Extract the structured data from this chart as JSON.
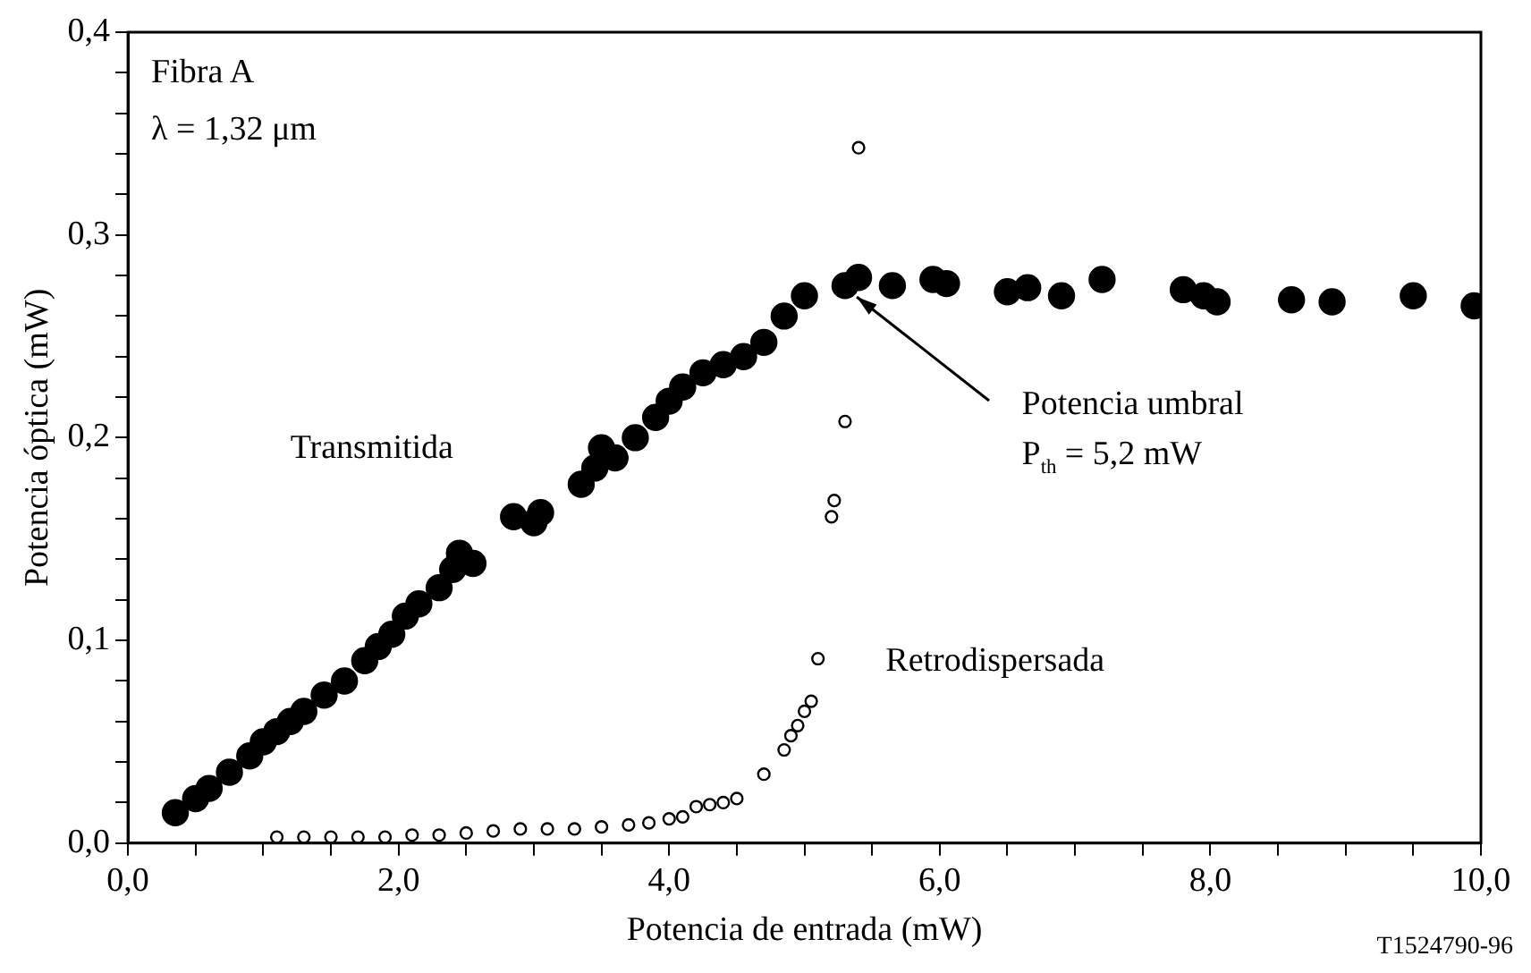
{
  "chart_data": {
    "type": "scatter",
    "xlabel": "Potencia de entrada (mW)",
    "ylabel": "Potencia óptica (mW)",
    "annotations": [
      "Fibra A",
      "λ = 1,32 μm",
      {
        "text": "Potencia umbral\nP$_{th}$ = 5,2 mW",
        "x": 5.35,
        "y": 0.275
      },
      "T1524790-96"
    ],
    "series": [
      {
        "name": "Transmitida",
        "color": "#000000",
        "x": [
          0.35,
          0.5,
          0.6,
          0.75,
          0.9,
          1.0,
          1.1,
          1.2,
          1.3,
          1.45,
          1.6,
          1.75,
          1.85,
          1.95,
          2.05,
          2.15,
          2.3,
          2.4,
          2.45,
          2.55,
          2.85,
          3.0,
          3.05,
          3.35,
          3.45,
          3.5,
          3.6,
          3.75,
          3.9,
          4.0,
          4.1,
          4.25,
          4.4,
          4.55,
          4.7,
          4.85,
          5.0,
          5.3,
          5.4,
          5.65,
          5.95,
          6.05,
          6.5,
          6.65,
          6.9,
          7.2,
          7.8,
          7.95,
          8.05,
          8.6,
          8.9,
          9.5,
          9.95
        ],
        "values": [
          0.015,
          0.022,
          0.027,
          0.035,
          0.043,
          0.05,
          0.055,
          0.06,
          0.065,
          0.073,
          0.08,
          0.09,
          0.097,
          0.103,
          0.112,
          0.118,
          0.126,
          0.135,
          0.143,
          0.138,
          0.161,
          0.158,
          0.163,
          0.177,
          0.185,
          0.195,
          0.19,
          0.2,
          0.21,
          0.218,
          0.225,
          0.232,
          0.236,
          0.24,
          0.247,
          0.26,
          0.27,
          0.275,
          0.279,
          0.275,
          0.278,
          0.276,
          0.272,
          0.274,
          0.27,
          0.278,
          0.273,
          0.27,
          0.267,
          0.268,
          0.267,
          0.27,
          0.265
        ]
      },
      {
        "name": "Retrodispersada",
        "color": "#000000",
        "x": [
          1.1,
          1.3,
          1.5,
          1.7,
          1.9,
          2.1,
          2.3,
          2.5,
          2.7,
          2.9,
          3.1,
          3.3,
          3.5,
          3.7,
          3.85,
          4.0,
          4.1,
          4.2,
          4.3,
          4.4,
          4.5,
          4.7,
          4.85,
          4.9,
          4.95,
          5.0,
          5.05,
          5.1,
          5.2,
          5.22,
          5.3,
          5.4
        ],
        "values": [
          0.003,
          0.003,
          0.003,
          0.003,
          0.003,
          0.004,
          0.004,
          0.005,
          0.006,
          0.007,
          0.007,
          0.007,
          0.008,
          0.009,
          0.01,
          0.012,
          0.013,
          0.018,
          0.019,
          0.02,
          0.022,
          0.034,
          0.046,
          0.053,
          0.058,
          0.065,
          0.07,
          0.091,
          0.161,
          0.169,
          0.208,
          0.343
        ]
      }
    ],
    "xlim": [
      0,
      10
    ],
    "xticks": [
      {
        "value": 0,
        "label": "0,0"
      },
      {
        "value": 0.5,
        "label": null
      },
      {
        "value": 1,
        "label": null
      },
      {
        "value": 1.5,
        "label": null
      },
      {
        "value": 2,
        "label": "2,0"
      },
      {
        "value": 2.5,
        "label": null
      },
      {
        "value": 3,
        "label": null
      },
      {
        "value": 3.5,
        "label": null
      },
      {
        "value": 4,
        "label": "4,0"
      },
      {
        "value": 4.5,
        "label": null
      },
      {
        "value": 5,
        "label": null
      },
      {
        "value": 5.5,
        "label": null
      },
      {
        "value": 6,
        "label": "6,0"
      },
      {
        "value": 6.5,
        "label": null
      },
      {
        "value": 7,
        "label": null
      },
      {
        "value": 7.5,
        "label": null
      },
      {
        "value": 8,
        "label": "8,0"
      },
      {
        "value": 8.5,
        "label": null
      },
      {
        "value": 9,
        "label": null
      },
      {
        "value": 9.5,
        "label": null
      },
      {
        "value": 10,
        "label": "10,0"
      }
    ],
    "ylim": [
      0,
      0.4
    ],
    "yticks": [
      {
        "value": 0,
        "label": "0,0"
      },
      {
        "value": 0.02,
        "label": null
      },
      {
        "value": 0.04,
        "label": null
      },
      {
        "value": 0.06,
        "label": null
      },
      {
        "value": 0.08,
        "label": null
      },
      {
        "value": 0.1,
        "label": "0,1"
      },
      {
        "value": 0.12,
        "label": null
      },
      {
        "value": 0.14,
        "label": null
      },
      {
        "value": 0.16,
        "label": null
      },
      {
        "value": 0.18,
        "label": null
      },
      {
        "value": 0.2,
        "label": "0,2"
      },
      {
        "value": 0.22,
        "label": null
      },
      {
        "value": 0.24,
        "label": null
      },
      {
        "value": 0.26,
        "label": null
      },
      {
        "value": 0.28,
        "label": null
      },
      {
        "value": 0.3,
        "label": "0,3"
      },
      {
        "value": 0.32,
        "label": null
      },
      {
        "value": 0.34,
        "label": null
      },
      {
        "value": 0.36,
        "label": null
      },
      {
        "value": 0.38,
        "label": null
      },
      {
        "value": 0.4,
        "label": "0,4"
      }
    ],
    "marker": "circle",
    "grid": false,
    "legend": false
  }
}
